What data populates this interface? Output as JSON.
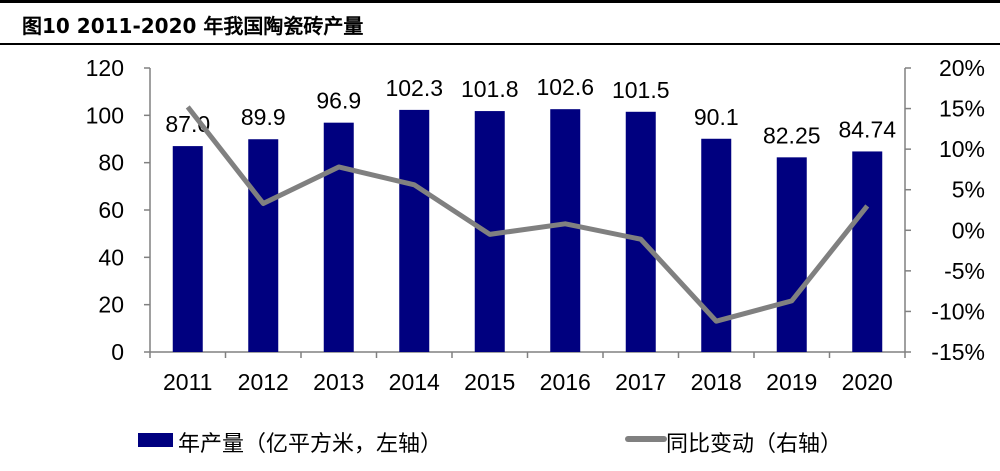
{
  "chart_data": {
    "type": "bar+line",
    "title": "图10 2011-2020 年我国陶瓷砖产量",
    "categories": [
      "2011",
      "2012",
      "2013",
      "2014",
      "2015",
      "2016",
      "2017",
      "2018",
      "2019",
      "2020"
    ],
    "series": [
      {
        "name": "年产量（亿平方米，左轴）",
        "type": "bar",
        "axis": "left",
        "color": "#00007F",
        "values": [
          87.0,
          89.9,
          96.9,
          102.3,
          101.8,
          102.6,
          101.5,
          90.1,
          82.25,
          84.74
        ],
        "labels": [
          "87.0",
          "89.9",
          "96.9",
          "102.3",
          "101.8",
          "102.6",
          "101.5",
          "90.1",
          "82.25",
          "84.74"
        ]
      },
      {
        "name": "同比变动（右轴）",
        "type": "line",
        "axis": "right",
        "color": "#808080",
        "values": [
          15.2,
          3.3,
          7.8,
          5.6,
          -0.5,
          0.8,
          -1.1,
          -11.2,
          -8.7,
          3.0
        ]
      }
    ],
    "left_axis": {
      "range": [
        0,
        120
      ],
      "ticks": [
        "0",
        "20",
        "40",
        "60",
        "80",
        "100",
        "120"
      ]
    },
    "right_axis": {
      "range": [
        -15,
        20
      ],
      "unit": "%",
      "ticks": [
        "-15%",
        "-10%",
        "-5%",
        "0%",
        "5%",
        "10%",
        "15%",
        "20%"
      ]
    },
    "grid": false,
    "legend": "bottom"
  }
}
